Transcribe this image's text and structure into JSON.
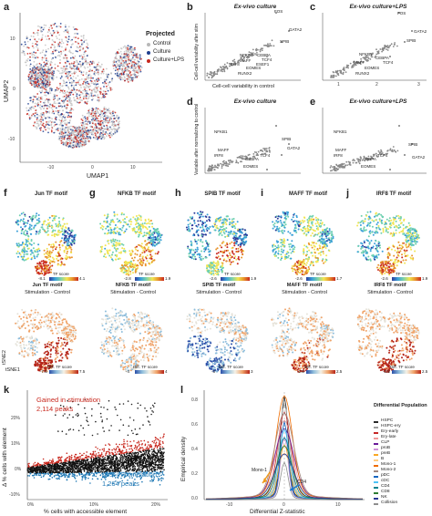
{
  "panels": {
    "a": {
      "label": "a",
      "legend_title": "Projected",
      "legend_items": [
        {
          "name": "Control",
          "color": "#b8b8b8"
        },
        {
          "name": "Culture",
          "color": "#1f3f8f"
        },
        {
          "name": "Culture+LPS",
          "color": "#c8281e"
        }
      ],
      "xlabel": "UMAP1",
      "ylabel": "UMAP2",
      "xticks": [
        "-10",
        "0",
        "10"
      ],
      "yticks": [
        "10",
        "0",
        "-10"
      ]
    },
    "b": {
      "label": "b",
      "title": "Ex-vivo culture",
      "xlabel": "Cell-cell variability in control",
      "ylabel": "Cell-cell variability after stim",
      "genes": [
        "FOS",
        "GATA2",
        "SPIB",
        "NFKB1",
        "CEBPA",
        "TCF4",
        "IRF8",
        "MAFF",
        "ESEF1",
        "EOMES",
        "RUNX2"
      ]
    },
    "c": {
      "label": "c",
      "title": "Ex-vivo culture+LPS",
      "ticks": [
        "1",
        "2",
        "3"
      ],
      "genes": [
        "FOS",
        "GATA2",
        "SPIB",
        "NFKB1",
        "CEBPA",
        "TCF4",
        "MAFF",
        "EOMES",
        "RUNX2"
      ]
    },
    "d": {
      "label": "d",
      "title": "Ex-vivo culture",
      "ylabel": "Variable after normalizing to control",
      "genes": [
        "NFKB1",
        "SPIB",
        "GATA2",
        "MAFF",
        "IRF8",
        "CEBPA",
        "TCF4",
        "EOMES"
      ]
    },
    "e": {
      "label": "e",
      "title": "Ex-vivo culture+LPS",
      "genes": [
        "NFKB1",
        "SPIB",
        "GATA2",
        "MAFF",
        "IRF8",
        "CEBPA",
        "TCF4",
        "EOMES"
      ]
    },
    "tf": [
      {
        "label": "f",
        "title": "Jun TF motif",
        "subtitle": "Jun TF motif",
        "range1": [
          "-8.1",
          "4.1"
        ],
        "range2": [
          "-7.5",
          "7.5"
        ]
      },
      {
        "label": "g",
        "title": "NFKB TF motif",
        "subtitle": "NFKB TF motif",
        "range1": [
          "-2.8",
          "1.9"
        ],
        "range2": [
          "-4",
          "4"
        ]
      },
      {
        "label": "h",
        "title": "SPIB TF motif",
        "subtitle": "SPIB TF motif",
        "range1": [
          "-2.6",
          "1.9"
        ],
        "range2": [
          "-3",
          "3"
        ]
      },
      {
        "label": "i",
        "title": "MAFF TF motif",
        "subtitle": "MAFF TF motif",
        "range1": [
          "-2.6",
          "1.7"
        ],
        "range2": [
          "-2.5",
          "2.5"
        ]
      },
      {
        "label": "j",
        "title": "IRF8 TF motif",
        "subtitle": "IRF8 TF motif",
        "range1": [
          "-2.6",
          "1.9"
        ],
        "range2": [
          "-2.5",
          "2.5"
        ]
      }
    ],
    "tf_common": {
      "score_label": "TF score",
      "diff_label": "Diff. TF score",
      "compare": "Stimulation - Control",
      "tsne1": "tSNE1",
      "tsne2": "tSNE2"
    },
    "k": {
      "label": "k",
      "gained_text": "Gained in stimulation",
      "gained_count": "2,114 peaks",
      "lost_text": "Lost in stimulation",
      "lost_count": "1,264 peaks",
      "xlabel": "% cells with accessible element",
      "ylabel": "Δ % cells with element",
      "xticks": [
        "0%",
        "10%",
        "20%"
      ],
      "yticks": [
        "20%",
        "10%",
        "0%",
        "-10%"
      ]
    },
    "l": {
      "label": "l",
      "xlabel": "Differential Z-statistic",
      "ylabel": "Empirical density",
      "xticks": [
        "-10",
        "0",
        "10"
      ],
      "yticks": [
        "0.0",
        "0.2",
        "0.4",
        "0.6",
        "0.8"
      ],
      "annot_mono": "Mono-1",
      "annot_cd4": "CD4",
      "legend_title": "Differential Population",
      "populations": [
        {
          "name": "HSPC",
          "color": "#2a2a2a"
        },
        {
          "name": "HSPC-ery",
          "color": "#9e9e9e"
        },
        {
          "name": "Ery-early",
          "color": "#c62828"
        },
        {
          "name": "Ery-late",
          "color": "#ef9a9a"
        },
        {
          "name": "CLP",
          "color": "#6a1b9a"
        },
        {
          "name": "proB",
          "color": "#ce93d8"
        },
        {
          "name": "preB",
          "color": "#f9a825"
        },
        {
          "name": "B",
          "color": "#ffcc80"
        },
        {
          "name": "Mono-1",
          "color": "#ef6c00"
        },
        {
          "name": "Mono-2",
          "color": "#a1887f"
        },
        {
          "name": "pDC",
          "color": "#1565c0"
        },
        {
          "name": "cDC",
          "color": "#4fc3f7"
        },
        {
          "name": "CD4",
          "color": "#00838f"
        },
        {
          "name": "CD8",
          "color": "#2e7d32"
        },
        {
          "name": "NK",
          "color": "#283593"
        },
        {
          "name": "Collision",
          "color": "#8e8e8e"
        }
      ]
    }
  },
  "chart_data": [
    {
      "type": "scatter",
      "panel": "b",
      "title": "Ex-vivo culture",
      "xlabel": "Cell-cell variability in control",
      "ylabel": "Cell-cell variability after stim",
      "xlim": [
        0.5,
        3
      ],
      "ylim": [
        0.5,
        3
      ],
      "labeled_points": [
        {
          "name": "FOS",
          "x": 2.35,
          "y": 2.9
        },
        {
          "name": "GATA2",
          "x": 2.8,
          "y": 2.55
        },
        {
          "name": "SPIB",
          "x": 2.5,
          "y": 2.15
        },
        {
          "name": "NFKB1",
          "x": 1.55,
          "y": 1.55
        },
        {
          "name": "CEBPA",
          "x": 1.9,
          "y": 1.6
        },
        {
          "name": "TCF4",
          "x": 2.0,
          "y": 1.45
        }
      ]
    },
    {
      "type": "scatter",
      "panel": "k",
      "xlabel": "% cells with accessible element",
      "ylabel": "Δ % cells with element",
      "xlim": [
        0,
        20
      ],
      "ylim": [
        -10,
        20
      ],
      "series": [
        {
          "name": "Gained in stimulation",
          "count": 2114,
          "color": "#c8281e"
        },
        {
          "name": "Lost in stimulation",
          "count": 1264,
          "color": "#1f78b4"
        }
      ]
    },
    {
      "type": "line",
      "panel": "l",
      "xlabel": "Differential Z-statistic",
      "ylabel": "Empirical density",
      "xlim": [
        -15,
        15
      ],
      "ylim": [
        0,
        0.9
      ]
    }
  ]
}
